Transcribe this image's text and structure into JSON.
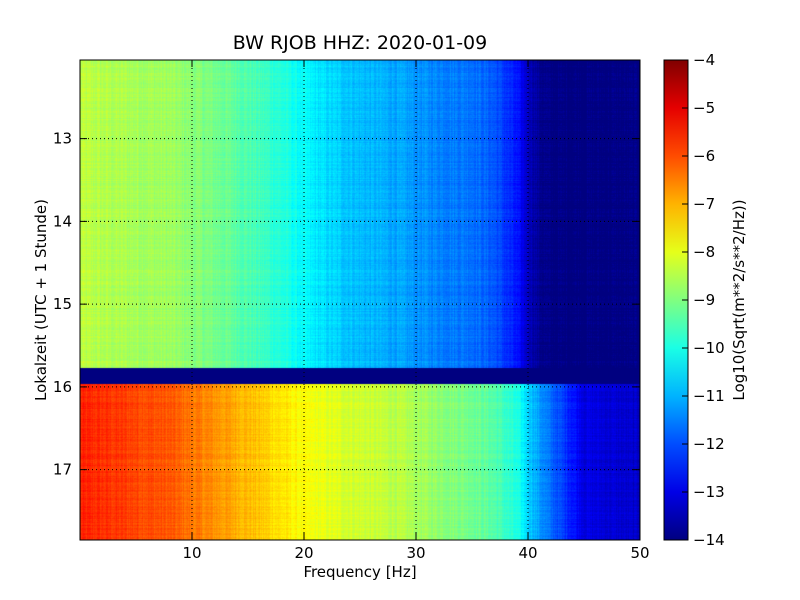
{
  "chart_data": {
    "type": "heatmap",
    "title": "BW RJOB HHZ: 2020-01-09",
    "xlabel": "Frequency [Hz]",
    "ylabel": "Lokalzeit (UTC + 1 Stunde)",
    "colorbar_label": "Log10(Sqrt(m**2/s**2/Hz))",
    "colormap": "jet",
    "xlim": [
      0,
      50
    ],
    "ylim": [
      12.05,
      17.85
    ],
    "y_inverted": true,
    "grid": true,
    "x_ticks": [
      10,
      20,
      30,
      40,
      50
    ],
    "x_tick_labels": [
      "10",
      "20",
      "30",
      "40",
      "50"
    ],
    "y_ticks": [
      13,
      14,
      15,
      16,
      17
    ],
    "y_tick_labels": [
      "13",
      "14",
      "15",
      "16",
      "17"
    ],
    "colorbar_range": [
      -14,
      -4
    ],
    "colorbar_ticks": [
      -4,
      -5,
      -6,
      -7,
      -8,
      -9,
      -10,
      -11,
      -12,
      -13,
      -14
    ],
    "colorbar_tick_labels": [
      "−4",
      "−5",
      "−6",
      "−7",
      "−8",
      "−9",
      "−10",
      "−11",
      "−12",
      "−13",
      "−14"
    ],
    "data_gap": {
      "time_start": 15.77,
      "time_end": 15.97,
      "value": -14
    },
    "spectrum_profiles": [
      {
        "time_range": [
          12.05,
          15.77
        ],
        "frequency": [
          0,
          2,
          5,
          8,
          10,
          13,
          16,
          18,
          20,
          22,
          25,
          28,
          30,
          33,
          35,
          37,
          39,
          40,
          41,
          42,
          43,
          44,
          45,
          50
        ],
        "value": [
          -8.4,
          -8.5,
          -8.6,
          -8.7,
          -8.9,
          -9.2,
          -9.6,
          -9.9,
          -10.3,
          -10.6,
          -10.9,
          -11.1,
          -11.3,
          -11.5,
          -11.6,
          -11.9,
          -12.6,
          -13.3,
          -13.8,
          -14,
          -14,
          -14,
          -14,
          -14
        ]
      },
      {
        "time_range": [
          15.97,
          17.85
        ],
        "frequency": [
          0,
          2,
          5,
          8,
          10,
          13,
          16,
          18,
          20,
          22,
          25,
          28,
          30,
          33,
          35,
          37,
          39,
          40,
          41,
          42,
          43,
          44,
          45,
          50
        ],
        "value": [
          -5.6,
          -5.7,
          -5.9,
          -6.1,
          -6.4,
          -6.8,
          -7.2,
          -7.5,
          -7.8,
          -8.0,
          -8.2,
          -8.4,
          -8.6,
          -8.9,
          -9.1,
          -9.4,
          -10.0,
          -10.6,
          -11.2,
          -11.7,
          -12.1,
          -12.5,
          -13.0,
          -13.3
        ]
      }
    ]
  }
}
